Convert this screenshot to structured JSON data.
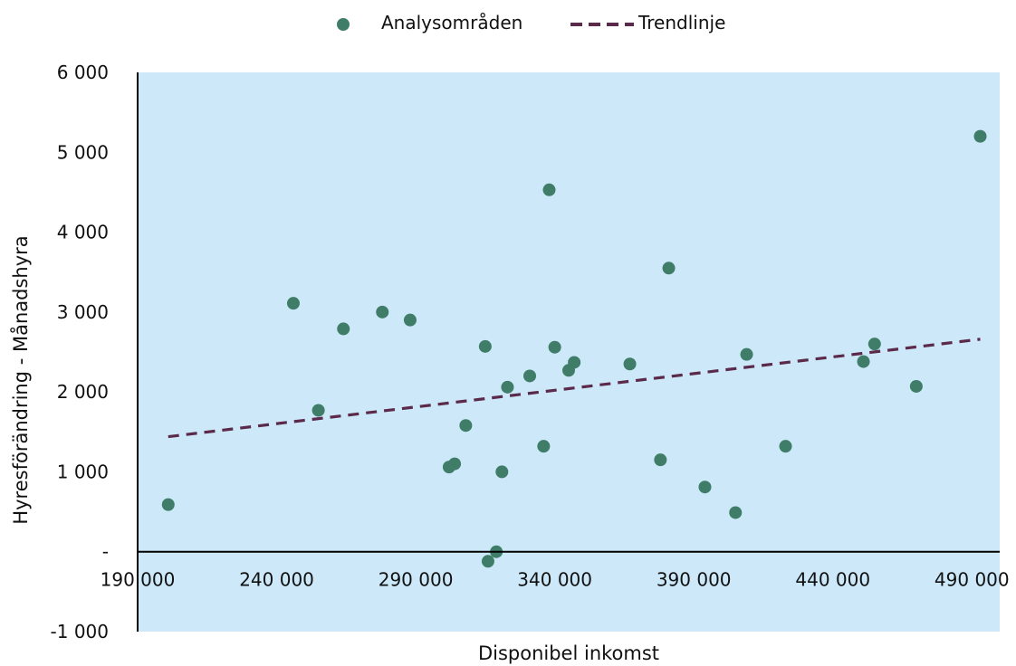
{
  "chart_data": {
    "type": "scatter",
    "title": "",
    "xlabel": "Disponibel inkomst",
    "ylabel": "Hyresförändring - Månadshyra",
    "xlim": [
      190000,
      500000
    ],
    "ylim": [
      -1000,
      6000
    ],
    "x_ticks": [
      190000,
      240000,
      290000,
      340000,
      390000,
      440000,
      490000
    ],
    "x_tick_labels": [
      "190 000",
      "240 000",
      "290 000",
      "340 000",
      "390 000",
      "440 000",
      "490 000"
    ],
    "y_ticks": [
      -1000,
      0,
      1000,
      2000,
      3000,
      4000,
      5000,
      6000
    ],
    "y_tick_labels": [
      "-1 000",
      "-",
      "1 000",
      "2 000",
      "3 000",
      "4 000",
      "5 000",
      "6 000"
    ],
    "grid": false,
    "plot_background": "#cce8f9",
    "legend_position": "top-center",
    "series": [
      {
        "name": "Analysområden",
        "color": "#3f7d68",
        "points": [
          [
            201000,
            590
          ],
          [
            246000,
            3110
          ],
          [
            255000,
            1770
          ],
          [
            264000,
            2790
          ],
          [
            278000,
            3000
          ],
          [
            288000,
            2900
          ],
          [
            302000,
            1060
          ],
          [
            304000,
            1100
          ],
          [
            308000,
            1580
          ],
          [
            315000,
            2570
          ],
          [
            316000,
            -120
          ],
          [
            319000,
            0
          ],
          [
            321000,
            1000
          ],
          [
            323000,
            2060
          ],
          [
            331000,
            2200
          ],
          [
            336000,
            1320
          ],
          [
            338000,
            4530
          ],
          [
            340000,
            2560
          ],
          [
            345000,
            2270
          ],
          [
            347000,
            2370
          ],
          [
            367000,
            2350
          ],
          [
            378000,
            1150
          ],
          [
            381000,
            3550
          ],
          [
            394000,
            810
          ],
          [
            405000,
            490
          ],
          [
            409000,
            2470
          ],
          [
            423000,
            1320
          ],
          [
            451000,
            2380
          ],
          [
            455000,
            2600
          ],
          [
            470000,
            2070
          ],
          [
            493000,
            5200
          ]
        ]
      },
      {
        "name": "Trendlinje",
        "color": "#5b2a4a",
        "style": "dashed",
        "type": "line",
        "points": [
          [
            201000,
            1440
          ],
          [
            493000,
            2660
          ]
        ]
      }
    ]
  }
}
